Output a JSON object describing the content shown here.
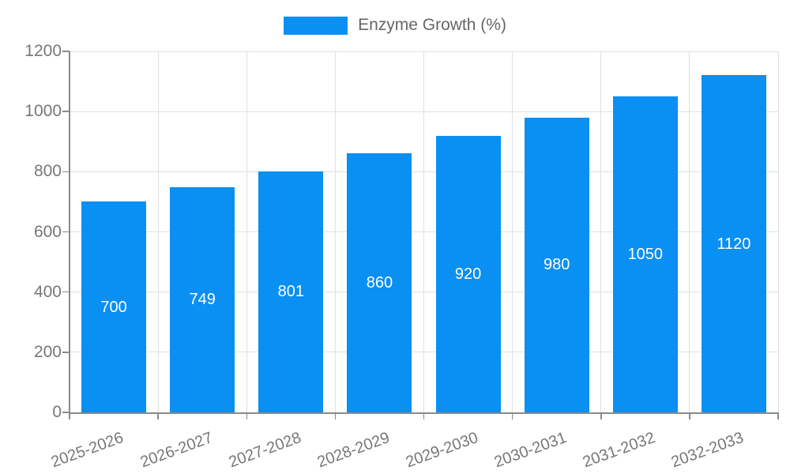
{
  "chart_data": {
    "type": "bar",
    "title": "",
    "legend": [
      "Enzyme Growth (%)"
    ],
    "legend_position": "top-center",
    "categories": [
      "2025-2026",
      "2026-2027",
      "2027-2028",
      "2028-2029",
      "2029-2030",
      "2030-2031",
      "2031-2032",
      "2032-2033"
    ],
    "values": [
      700,
      749,
      801,
      860,
      920,
      980,
      1050,
      1120
    ],
    "value_labels_inside_bars": true,
    "xlabel": "",
    "ylabel": "",
    "ylim": [
      0,
      1200
    ],
    "yticks": [
      0,
      200,
      400,
      600,
      800,
      1000,
      1200
    ],
    "grid": true,
    "x_label_rotation_deg": -20,
    "colors": {
      "bar": "#0a8ff2",
      "grid": "#e0e0e0",
      "axis": "#8a8a8a",
      "tick_text": "#777777",
      "legend_text": "#666666",
      "value_label_text": "#ffffff",
      "background": "#ffffff"
    }
  }
}
